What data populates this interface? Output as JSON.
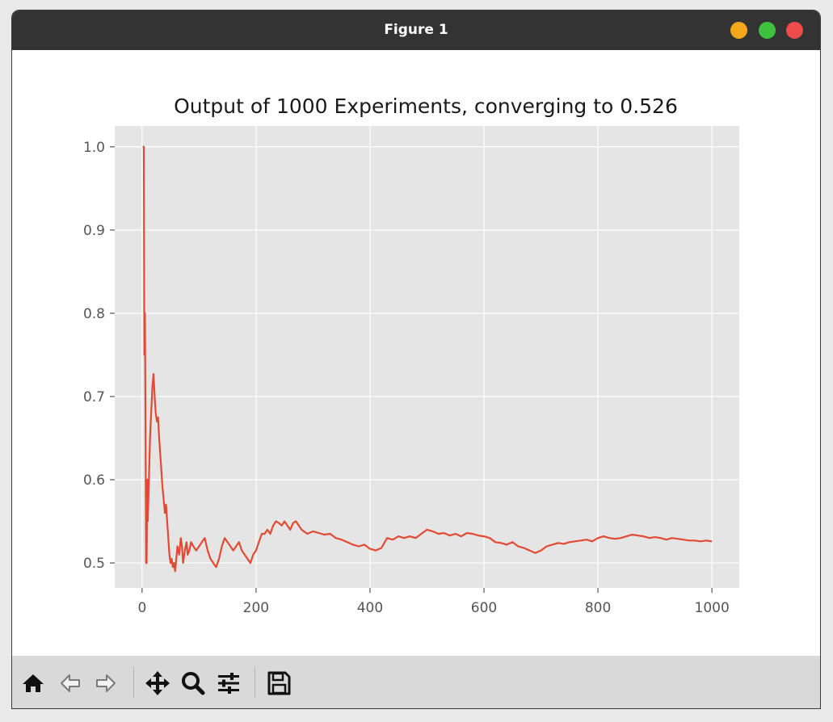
{
  "window": {
    "title": "Figure 1",
    "buttons": {
      "minimize_color": "#f5a81c",
      "maximize_color": "#3ec23e",
      "close_color": "#ef4b4b"
    }
  },
  "toolbar": {
    "tools": [
      "home-icon",
      "back-arrow-icon",
      "forward-arrow-icon",
      "pan-icon",
      "zoom-icon",
      "configure-subplots-icon",
      "save-icon"
    ]
  },
  "chart_data": {
    "type": "line",
    "title": "Output of 1000 Experiments, converging to 0.526",
    "xlabel": "",
    "ylabel": "",
    "xlim": [
      -48,
      1048
    ],
    "ylim": [
      0.47,
      1.025
    ],
    "xticks": [
      0,
      200,
      400,
      600,
      800,
      1000
    ],
    "yticks": [
      0.5,
      0.6,
      0.7,
      0.8,
      0.9,
      1.0
    ],
    "xtick_labels": [
      "0",
      "200",
      "400",
      "600",
      "800",
      "1000"
    ],
    "ytick_labels": [
      "0.5",
      "0.6",
      "0.7",
      "0.8",
      "0.9",
      "1.0"
    ],
    "grid": true,
    "background_color": "#e5e5e5",
    "grid_color": "#ffffff",
    "line_color": "#e24a33",
    "series": [
      {
        "x": [
          1,
          2,
          3,
          4,
          5,
          6,
          7,
          8,
          9,
          10,
          12,
          14,
          16,
          18,
          20,
          22,
          24,
          26,
          28,
          30,
          32,
          34,
          36,
          38,
          40,
          42,
          44,
          46,
          48,
          50,
          52,
          54,
          56,
          58,
          60,
          62,
          65,
          68,
          70,
          72,
          75,
          78,
          80,
          83,
          86,
          90,
          95,
          100,
          105,
          110,
          115,
          120,
          125,
          130,
          135,
          140,
          145,
          150,
          155,
          160,
          165,
          170,
          175,
          180,
          185,
          190,
          195,
          200,
          205,
          210,
          215,
          220,
          225,
          230,
          235,
          240,
          245,
          250,
          255,
          260,
          265,
          270,
          275,
          280,
          290,
          300,
          310,
          320,
          330,
          340,
          350,
          360,
          370,
          380,
          390,
          400,
          410,
          420,
          430,
          440,
          450,
          460,
          470,
          480,
          490,
          500,
          510,
          520,
          530,
          540,
          550,
          560,
          570,
          580,
          590,
          600,
          610,
          620,
          630,
          640,
          650,
          660,
          670,
          680,
          690,
          700,
          710,
          720,
          730,
          740,
          750,
          760,
          770,
          780,
          790,
          800,
          810,
          820,
          830,
          840,
          850,
          860,
          870,
          880,
          890,
          900,
          910,
          920,
          930,
          940,
          950,
          960,
          970,
          980,
          990,
          1000
        ],
        "y": [
          1.0,
          1.0,
          1.0,
          0.75,
          0.8,
          0.6667,
          0.5,
          0.5,
          0.6,
          0.55,
          0.6,
          0.65,
          0.68,
          0.71,
          0.727,
          0.7,
          0.68,
          0.67,
          0.675,
          0.65,
          0.63,
          0.61,
          0.59,
          0.575,
          0.56,
          0.57,
          0.55,
          0.53,
          0.51,
          0.5,
          0.505,
          0.495,
          0.5,
          0.49,
          0.505,
          0.52,
          0.51,
          0.53,
          0.52,
          0.5,
          0.515,
          0.525,
          0.51,
          0.515,
          0.525,
          0.52,
          0.515,
          0.52,
          0.525,
          0.53,
          0.515,
          0.505,
          0.5,
          0.495,
          0.505,
          0.52,
          0.53,
          0.525,
          0.52,
          0.515,
          0.52,
          0.525,
          0.515,
          0.51,
          0.505,
          0.5,
          0.51,
          0.515,
          0.525,
          0.535,
          0.535,
          0.54,
          0.535,
          0.545,
          0.55,
          0.548,
          0.545,
          0.55,
          0.545,
          0.54,
          0.548,
          0.55,
          0.545,
          0.54,
          0.535,
          0.538,
          0.536,
          0.534,
          0.535,
          0.53,
          0.528,
          0.525,
          0.522,
          0.52,
          0.522,
          0.517,
          0.515,
          0.518,
          0.53,
          0.528,
          0.532,
          0.53,
          0.532,
          0.53,
          0.535,
          0.54,
          0.538,
          0.535,
          0.536,
          0.533,
          0.535,
          0.532,
          0.536,
          0.535,
          0.533,
          0.532,
          0.53,
          0.525,
          0.524,
          0.522,
          0.525,
          0.52,
          0.518,
          0.515,
          0.512,
          0.515,
          0.52,
          0.522,
          0.524,
          0.523,
          0.525,
          0.526,
          0.527,
          0.528,
          0.526,
          0.53,
          0.532,
          0.53,
          0.529,
          0.53,
          0.532,
          0.534,
          0.533,
          0.532,
          0.53,
          0.531,
          0.53,
          0.528,
          0.53,
          0.529,
          0.528,
          0.527,
          0.527,
          0.526,
          0.527,
          0.526
        ]
      }
    ]
  }
}
